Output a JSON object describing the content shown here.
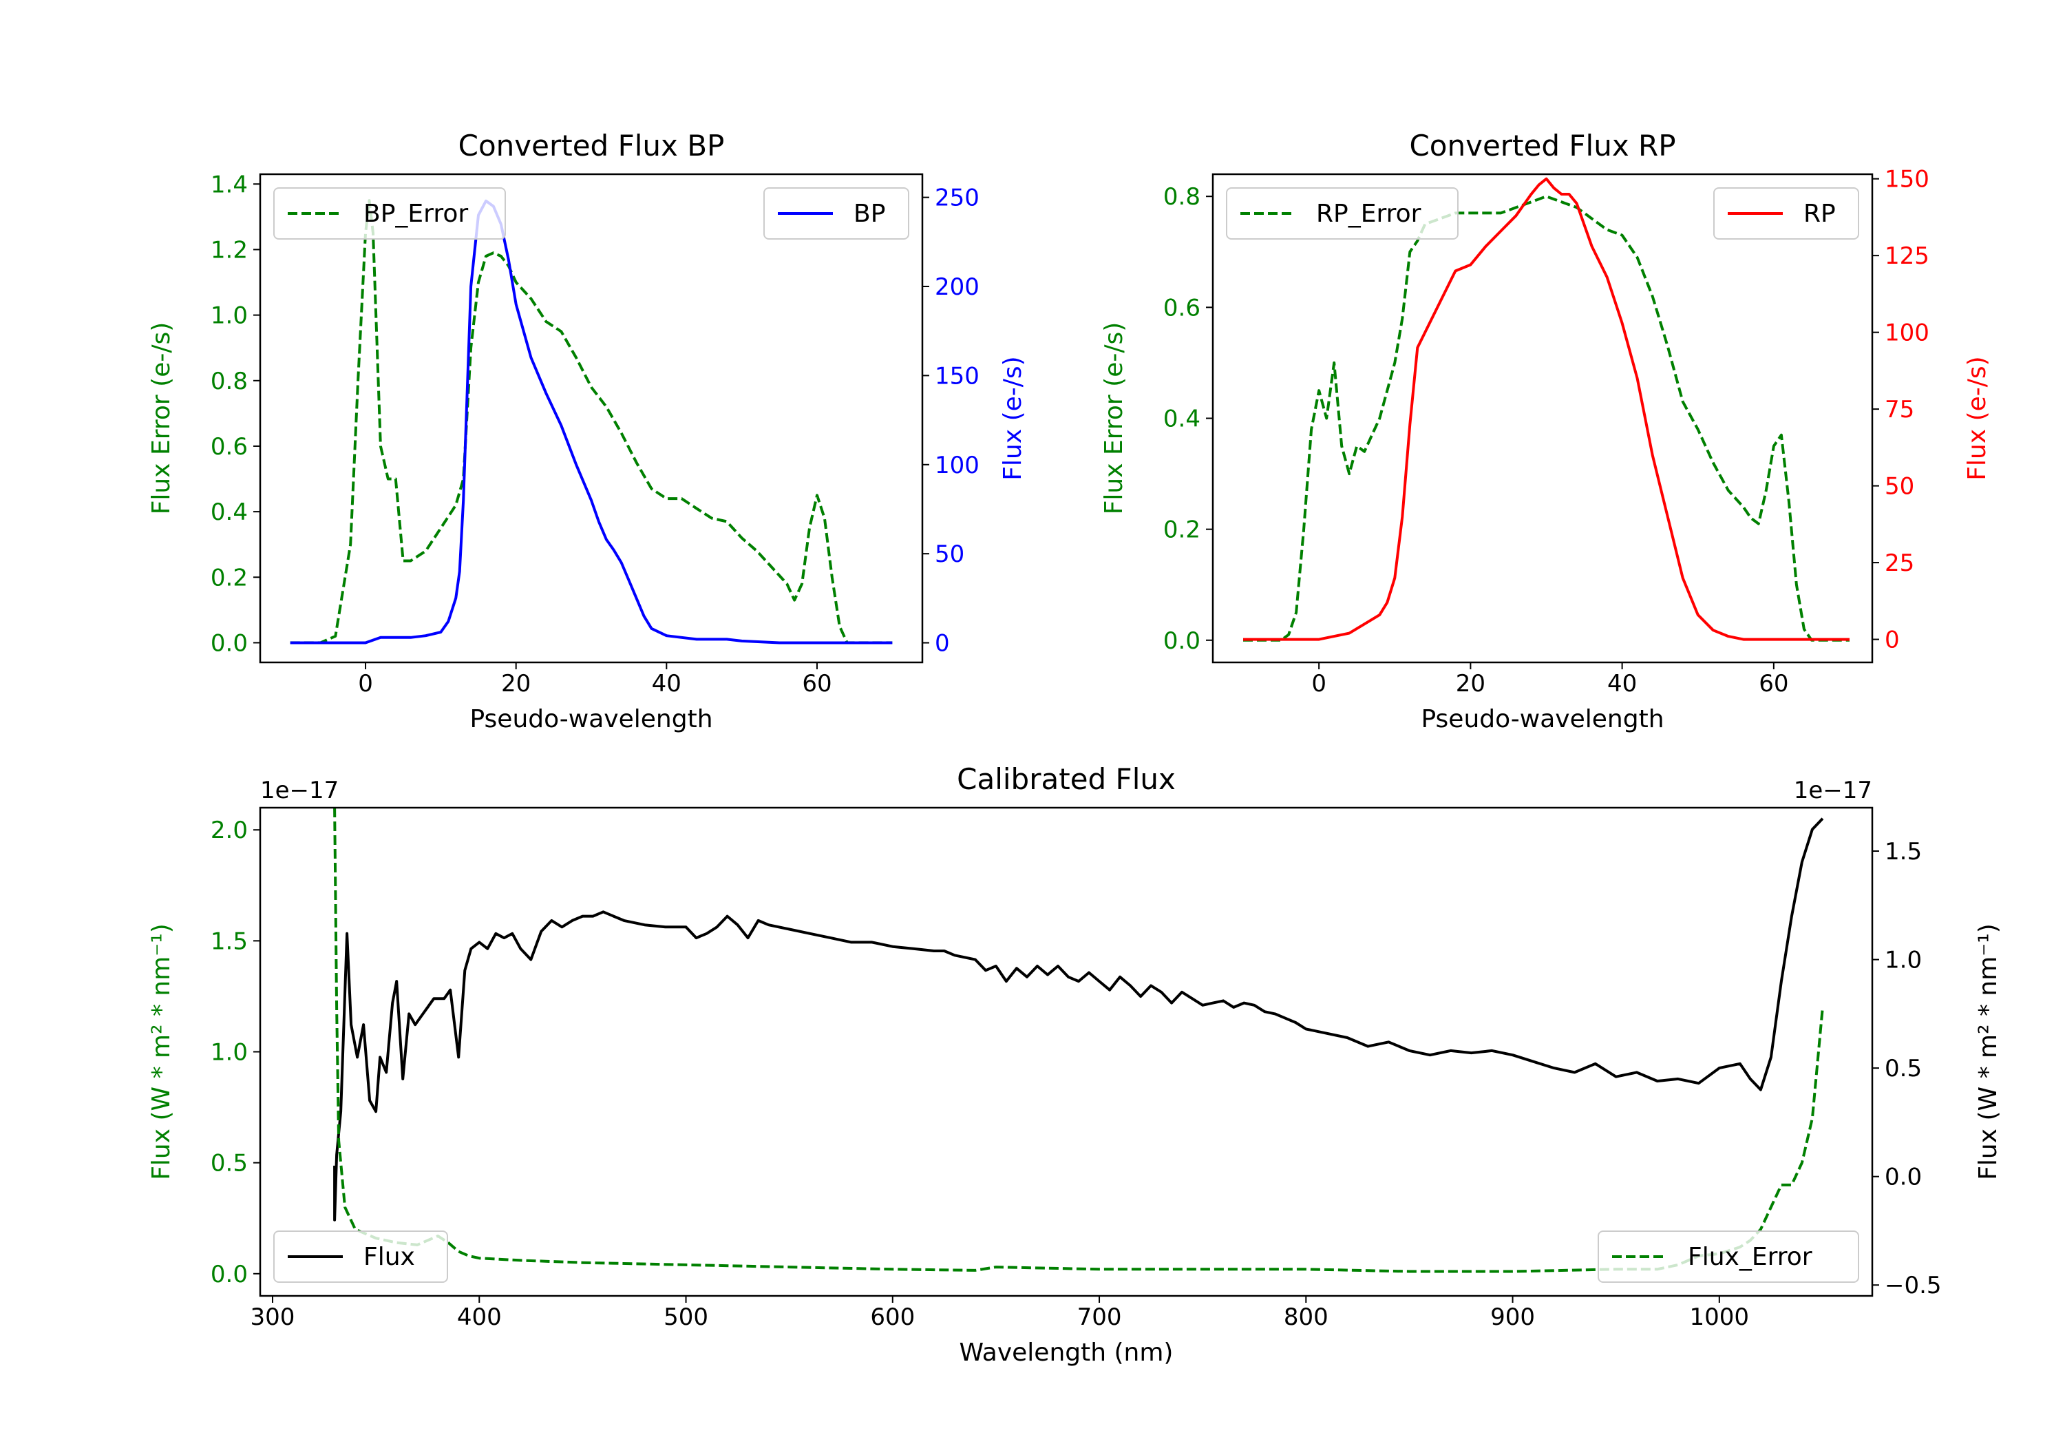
{
  "chart_data": [
    {
      "type": "line",
      "id": "bp",
      "title": "Converted Flux BP",
      "xlabel": "Pseudo-wavelength",
      "ylabel_left": "Flux Error (e-/s)",
      "ylabel_right": "Flux (e-/s)",
      "xlim": [
        -14,
        74
      ],
      "ylim_left": [
        -0.06,
        1.43
      ],
      "ylim_right": [
        -11,
        263
      ],
      "xticks": [
        0,
        20,
        40,
        60
      ],
      "xtick_labels": [
        "0",
        "20",
        "40",
        "60"
      ],
      "yticks_left": [
        0,
        0.2,
        0.4,
        0.6,
        0.8,
        1.0,
        1.2,
        1.4
      ],
      "ytick_labels_left": [
        "0.0",
        "0.2",
        "0.4",
        "0.6",
        "0.8",
        "1.0",
        "1.2",
        "1.4"
      ],
      "yticks_right": [
        0,
        50,
        100,
        150,
        200,
        250
      ],
      "ytick_labels_right": [
        "0",
        "50",
        "100",
        "150",
        "200",
        "250"
      ],
      "colors": {
        "left": "#008000",
        "right": "#0000ff"
      },
      "legend_left": {
        "label": "BP_Error",
        "placement": "upper-left"
      },
      "legend_right": {
        "label": "BP",
        "placement": "upper-right"
      },
      "series": [
        {
          "name": "BP_Error",
          "axis": "left",
          "style": "dashed",
          "color": "#008000",
          "x": [
            -10,
            -6,
            -4,
            -2,
            -1,
            0,
            0.5,
            1,
            2,
            3,
            4,
            5,
            6,
            8,
            10,
            12,
            13,
            14,
            15,
            16,
            17,
            18,
            19,
            20,
            22,
            24,
            26,
            28,
            30,
            32,
            34,
            36,
            38,
            40,
            42,
            44,
            46,
            48,
            50,
            52,
            54,
            56,
            57,
            58,
            59,
            60,
            61,
            62,
            63,
            64,
            66,
            70
          ],
          "y": [
            0,
            0,
            0.02,
            0.3,
            0.8,
            1.25,
            1.35,
            1.25,
            0.6,
            0.5,
            0.5,
            0.25,
            0.25,
            0.28,
            0.35,
            0.42,
            0.5,
            0.9,
            1.1,
            1.18,
            1.19,
            1.18,
            1.15,
            1.1,
            1.05,
            0.98,
            0.95,
            0.87,
            0.78,
            0.72,
            0.64,
            0.55,
            0.47,
            0.44,
            0.44,
            0.41,
            0.38,
            0.37,
            0.32,
            0.28,
            0.23,
            0.18,
            0.13,
            0.18,
            0.35,
            0.45,
            0.38,
            0.2,
            0.05,
            0,
            0,
            0
          ]
        },
        {
          "name": "BP",
          "axis": "right",
          "style": "solid",
          "color": "#0000ff",
          "x": [
            -10,
            -5,
            0,
            2,
            4,
            6,
            8,
            10,
            11,
            12,
            12.5,
            13,
            14,
            15,
            16,
            17,
            18,
            19,
            20,
            22,
            24,
            26,
            28,
            30,
            31,
            32,
            33,
            34,
            35,
            36,
            37,
            38,
            40,
            42,
            44,
            46,
            48,
            50,
            55,
            60,
            65,
            70
          ],
          "y": [
            0,
            0,
            0,
            3,
            3,
            3,
            4,
            6,
            12,
            25,
            40,
            80,
            200,
            240,
            248,
            245,
            235,
            215,
            190,
            160,
            140,
            122,
            100,
            80,
            68,
            58,
            52,
            45,
            35,
            25,
            15,
            8,
            4,
            3,
            2,
            2,
            2,
            1,
            0,
            0,
            0,
            0
          ]
        }
      ]
    },
    {
      "type": "line",
      "id": "rp",
      "title": "Converted Flux RP",
      "xlabel": "Pseudo-wavelength",
      "ylabel_left": "Flux Error (e-/s)",
      "ylabel_right": "Flux (e-/s)",
      "xlim": [
        -14,
        73
      ],
      "ylim_left": [
        -0.04,
        0.84
      ],
      "ylim_right": [
        -7.5,
        151.5
      ],
      "xticks": [
        0,
        20,
        40,
        60
      ],
      "xtick_labels": [
        "0",
        "20",
        "40",
        "60"
      ],
      "yticks_left": [
        0,
        0.2,
        0.4,
        0.6,
        0.8
      ],
      "ytick_labels_left": [
        "0.0",
        "0.2",
        "0.4",
        "0.6",
        "0.8"
      ],
      "yticks_right": [
        0,
        25,
        50,
        75,
        100,
        125,
        150
      ],
      "ytick_labels_right": [
        "0",
        "25",
        "50",
        "75",
        "100",
        "125",
        "150"
      ],
      "colors": {
        "left": "#008000",
        "right": "#ff0000"
      },
      "legend_left": {
        "label": "RP_Error",
        "placement": "upper-left"
      },
      "legend_right": {
        "label": "RP",
        "placement": "upper-right"
      },
      "series": [
        {
          "name": "RP_Error",
          "axis": "left",
          "style": "dashed",
          "color": "#008000",
          "x": [
            -10,
            -5,
            -4,
            -3,
            -2,
            -1,
            0,
            1,
            2,
            3,
            4,
            5,
            6,
            8,
            10,
            11,
            12,
            13,
            14,
            16,
            18,
            20,
            24,
            28,
            30,
            32,
            34,
            36,
            38,
            40,
            42,
            44,
            46,
            48,
            50,
            52,
            54,
            56,
            57,
            58,
            59,
            60,
            61,
            62,
            63,
            64,
            65,
            70
          ],
          "y": [
            0,
            0,
            0.01,
            0.05,
            0.2,
            0.38,
            0.45,
            0.4,
            0.5,
            0.35,
            0.3,
            0.35,
            0.34,
            0.4,
            0.5,
            0.58,
            0.7,
            0.72,
            0.75,
            0.76,
            0.77,
            0.77,
            0.77,
            0.79,
            0.8,
            0.79,
            0.78,
            0.76,
            0.74,
            0.73,
            0.69,
            0.62,
            0.53,
            0.43,
            0.38,
            0.32,
            0.27,
            0.24,
            0.22,
            0.21,
            0.27,
            0.35,
            0.37,
            0.25,
            0.1,
            0.02,
            0,
            0
          ]
        },
        {
          "name": "RP",
          "axis": "right",
          "style": "solid",
          "color": "#ff0000",
          "x": [
            -10,
            0,
            4,
            6,
            8,
            9,
            10,
            11,
            12,
            13,
            14,
            16,
            18,
            20,
            22,
            24,
            26,
            28,
            29,
            30,
            31,
            32,
            33,
            34,
            36,
            38,
            40,
            42,
            44,
            46,
            48,
            50,
            52,
            54,
            56,
            58,
            60,
            62,
            65,
            70
          ],
          "y": [
            0,
            0,
            2,
            5,
            8,
            12,
            20,
            40,
            70,
            95,
            100,
            110,
            120,
            122,
            128,
            133,
            138,
            145,
            148,
            150,
            147,
            145,
            145,
            142,
            128,
            118,
            103,
            85,
            60,
            40,
            20,
            8,
            3,
            1,
            0,
            0,
            0,
            0,
            0,
            0
          ]
        }
      ]
    },
    {
      "type": "line",
      "id": "calibrated",
      "title": "Calibrated Flux",
      "xlabel": "Wavelength (nm)",
      "ylabel_left": "Flux (W * m² * nm⁻¹)",
      "ylabel_right": "Flux (W * m² * nm⁻¹)",
      "offset_left": "1e−17",
      "offset_right": "1e−17",
      "xlim": [
        294,
        1074
      ],
      "ylim_left": [
        -0.1,
        2.1
      ],
      "ylim_right": [
        -0.55,
        1.7
      ],
      "xticks": [
        300,
        400,
        500,
        600,
        700,
        800,
        900,
        1000
      ],
      "xtick_labels": [
        "300",
        "400",
        "500",
        "600",
        "700",
        "800",
        "900",
        "1000"
      ],
      "yticks_left": [
        0,
        0.5,
        1.0,
        1.5,
        2.0
      ],
      "ytick_labels_left": [
        "0.0",
        "0.5",
        "1.0",
        "1.5",
        "2.0"
      ],
      "yticks_right": [
        -0.5,
        0,
        0.5,
        1.0,
        1.5
      ],
      "ytick_labels_right": [
        "−0.5",
        "0.0",
        "0.5",
        "1.0",
        "1.5"
      ],
      "colors": {
        "left": "#008000",
        "right": "#000000"
      },
      "legend_left": {
        "label": "Flux",
        "placement": "lower-left"
      },
      "legend_right": {
        "label": "Flux_Error",
        "placement": "lower-right"
      },
      "series": [
        {
          "name": "Flux",
          "axis": "right",
          "style": "solid",
          "color": "#000000",
          "x": [
            330,
            330,
            331,
            333,
            336,
            338,
            341,
            344,
            347,
            350,
            352,
            355,
            358,
            360,
            363,
            366,
            369,
            372,
            375,
            378,
            380,
            383,
            386,
            390,
            393,
            396,
            400,
            404,
            408,
            412,
            416,
            420,
            425,
            430,
            435,
            440,
            445,
            450,
            455,
            460,
            465,
            470,
            480,
            490,
            500,
            505,
            510,
            515,
            520,
            525,
            530,
            535,
            540,
            550,
            560,
            570,
            580,
            590,
            600,
            610,
            620,
            625,
            630,
            640,
            645,
            650,
            655,
            660,
            665,
            670,
            675,
            680,
            685,
            690,
            695,
            700,
            705,
            710,
            715,
            720,
            725,
            730,
            735,
            740,
            745,
            750,
            755,
            760,
            765,
            770,
            775,
            780,
            785,
            790,
            795,
            800,
            810,
            820,
            830,
            840,
            850,
            860,
            870,
            880,
            890,
            900,
            910,
            920,
            930,
            940,
            950,
            960,
            970,
            980,
            990,
            1000,
            1010,
            1015,
            1020,
            1025,
            1030,
            1035,
            1040,
            1045,
            1050
          ],
          "y": [
            0.05,
            -0.2,
            0.1,
            0.3,
            1.12,
            0.7,
            0.55,
            0.7,
            0.35,
            0.3,
            0.55,
            0.48,
            0.8,
            0.9,
            0.45,
            0.75,
            0.7,
            0.74,
            0.78,
            0.82,
            0.82,
            0.82,
            0.86,
            0.55,
            0.95,
            1.05,
            1.08,
            1.05,
            1.12,
            1.1,
            1.12,
            1.05,
            1.0,
            1.13,
            1.18,
            1.15,
            1.18,
            1.2,
            1.2,
            1.22,
            1.2,
            1.18,
            1.16,
            1.15,
            1.15,
            1.1,
            1.12,
            1.15,
            1.2,
            1.16,
            1.1,
            1.18,
            1.16,
            1.14,
            1.12,
            1.1,
            1.08,
            1.08,
            1.06,
            1.05,
            1.04,
            1.04,
            1.02,
            1.0,
            0.95,
            0.97,
            0.9,
            0.96,
            0.92,
            0.97,
            0.93,
            0.97,
            0.92,
            0.9,
            0.94,
            0.9,
            0.86,
            0.92,
            0.88,
            0.83,
            0.88,
            0.85,
            0.8,
            0.85,
            0.82,
            0.79,
            0.8,
            0.81,
            0.78,
            0.8,
            0.79,
            0.76,
            0.75,
            0.73,
            0.71,
            0.68,
            0.66,
            0.64,
            0.6,
            0.62,
            0.58,
            0.56,
            0.58,
            0.57,
            0.58,
            0.56,
            0.53,
            0.5,
            0.48,
            0.52,
            0.46,
            0.48,
            0.44,
            0.45,
            0.43,
            0.5,
            0.52,
            0.45,
            0.4,
            0.55,
            0.9,
            1.2,
            1.45,
            1.6,
            1.65
          ]
        },
        {
          "name": "Flux_Error",
          "axis": "left",
          "style": "dashed",
          "color": "#008000",
          "x": [
            330,
            331,
            332,
            335,
            340,
            350,
            360,
            370,
            380,
            385,
            390,
            395,
            400,
            420,
            450,
            500,
            550,
            600,
            640,
            650,
            700,
            750,
            800,
            850,
            900,
            950,
            970,
            980,
            990,
            1000,
            1010,
            1015,
            1020,
            1025,
            1030,
            1035,
            1040,
            1045,
            1050
          ],
          "y": [
            2.1,
            1.2,
            0.6,
            0.3,
            0.2,
            0.16,
            0.14,
            0.13,
            0.17,
            0.14,
            0.1,
            0.08,
            0.07,
            0.06,
            0.05,
            0.04,
            0.03,
            0.02,
            0.015,
            0.03,
            0.02,
            0.02,
            0.02,
            0.01,
            0.01,
            0.02,
            0.02,
            0.04,
            0.08,
            0.09,
            0.12,
            0.15,
            0.2,
            0.3,
            0.4,
            0.4,
            0.5,
            0.7,
            1.2
          ]
        }
      ]
    }
  ]
}
